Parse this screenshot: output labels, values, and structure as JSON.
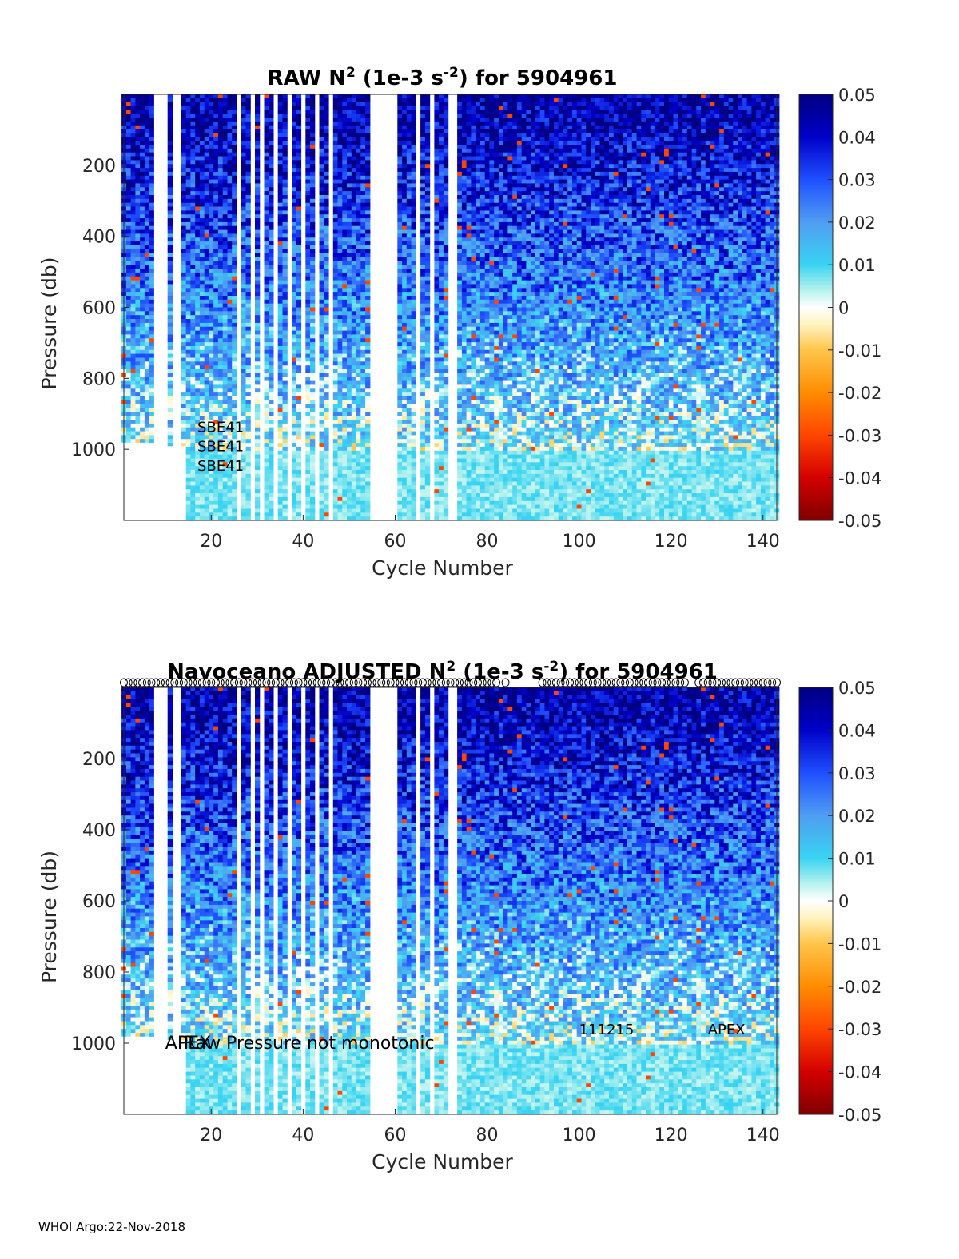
{
  "footer": "WHOI Argo:22-Nov-2018",
  "chart_data": [
    {
      "type": "heatmap",
      "title_parts": [
        "RAW N",
        "2",
        " (1e-3 s",
        "-2",
        ") for 5904961"
      ],
      "xlabel": "Cycle Number",
      "ylabel": "Pressure (db)",
      "xlim": [
        1,
        143
      ],
      "ylim": [
        1200,
        0
      ],
      "y_reversed": true,
      "x_ticks": [
        20,
        40,
        60,
        80,
        100,
        120,
        140
      ],
      "y_ticks": [
        200,
        400,
        600,
        800,
        1000
      ],
      "colorbar": {
        "range": [
          -0.05,
          0.05
        ],
        "ticks": [
          "0.05",
          "0.04",
          "0.03",
          "0.02",
          "0.01",
          "0",
          "-0.01",
          "-0.02",
          "-0.03",
          "-0.04",
          "-0.05"
        ],
        "colormap": "jet-like with white near zero"
      },
      "gap_cycles": [
        8,
        9,
        10,
        12,
        13,
        26,
        29,
        31,
        34,
        37,
        40,
        43,
        46,
        55,
        56,
        57,
        58,
        59,
        60,
        65,
        68,
        72,
        73
      ],
      "max_depth_by_cycle_bands": [
        {
          "from": 1,
          "to": 6,
          "max_pressure": 980
        },
        {
          "from": 7,
          "to": 14,
          "max_pressure": 990
        },
        {
          "from": 15,
          "to": 143,
          "max_pressure": 1200
        }
      ],
      "annotations": [
        {
          "text": "SBE41",
          "x": 17,
          "y": 935
        },
        {
          "text": "SBE41",
          "x": 17,
          "y": 990
        },
        {
          "text": "SBE41",
          "x": 17,
          "y": 1045
        }
      ],
      "markers": []
    },
    {
      "type": "heatmap",
      "title_parts": [
        "Navoceano  ADJUSTED N",
        "2",
        " (1e-3 s",
        "-2",
        ") for 5904961"
      ],
      "xlabel": "Cycle Number",
      "ylabel": "Pressure (db)",
      "xlim": [
        1,
        143
      ],
      "ylim": [
        1200,
        0
      ],
      "y_reversed": true,
      "x_ticks": [
        20,
        40,
        60,
        80,
        100,
        120,
        140
      ],
      "y_ticks": [
        200,
        400,
        600,
        800,
        1000
      ],
      "colorbar": {
        "range": [
          -0.05,
          0.05
        ],
        "ticks": [
          "0.05",
          "0.04",
          "0.03",
          "0.02",
          "0.01",
          "0",
          "-0.01",
          "-0.02",
          "-0.03",
          "-0.04",
          "-0.05"
        ],
        "colormap": "jet-like with white near zero"
      },
      "gap_cycles": [
        8,
        9,
        10,
        12,
        13,
        26,
        29,
        31,
        34,
        37,
        40,
        43,
        46,
        55,
        56,
        57,
        58,
        59,
        60,
        65,
        68,
        72,
        73
      ],
      "max_depth_by_cycle_bands": [
        {
          "from": 1,
          "to": 6,
          "max_pressure": 980
        },
        {
          "from": 7,
          "to": 14,
          "max_pressure": 990
        },
        {
          "from": 15,
          "to": 143,
          "max_pressure": 1200
        }
      ],
      "annotations": [
        {
          "text": "APEX",
          "x": 10,
          "y": 1000
        },
        {
          "text": "Raw Pressure not monotonic",
          "x": 14,
          "y": 1000
        },
        {
          "text": "111215",
          "x": 100,
          "y": 960
        },
        {
          "text": "APEX",
          "x": 128,
          "y": 960
        }
      ],
      "markers": {
        "symbol": "o",
        "row": "top",
        "marker_cycles_ranges": [
          [
            1,
            82
          ],
          [
            84,
            84
          ],
          [
            92,
            123
          ],
          [
            126,
            143
          ]
        ]
      }
    }
  ]
}
